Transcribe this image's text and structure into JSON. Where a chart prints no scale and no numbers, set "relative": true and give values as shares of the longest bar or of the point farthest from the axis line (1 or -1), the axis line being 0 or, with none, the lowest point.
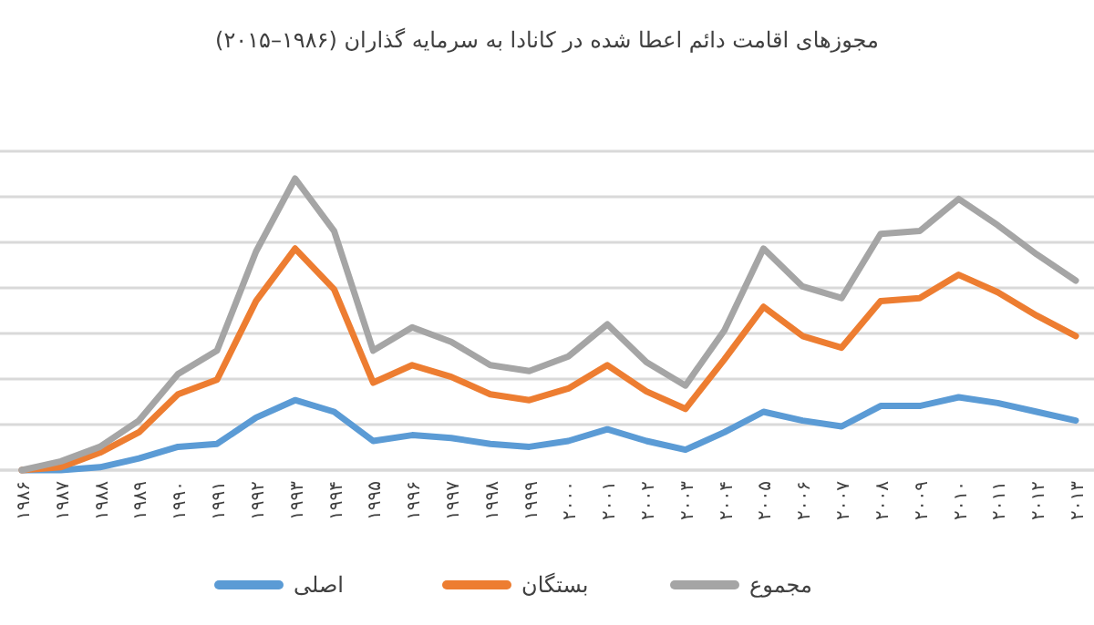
{
  "chart_data": {
    "type": "line",
    "title": "مجوزهای اقامت دائم اعطا شده در کانادا به سرمایه گذاران (۱۹۸۶–۲۰۱۵)",
    "relative": true,
    "grid": "y",
    "legend": "bottom",
    "marker": "none",
    "line_style": "solid",
    "categories": [
      "۱۹۸۶",
      "۱۹۸۷",
      "۱۹۸۸",
      "۱۹۸۹",
      "۱۹۹۰",
      "۱۹۹۱",
      "۱۹۹۲",
      "۱۹۹۳",
      "۱۹۹۴",
      "۱۹۹۵",
      "۱۹۹۶",
      "۱۹۹۷",
      "۱۹۹۸",
      "۱۹۹۹",
      "۲۰۰۰",
      "۲۰۰۱",
      "۲۰۰۲",
      "۲۰۰۳",
      "۲۰۰۴",
      "۲۰۰۵",
      "۲۰۰۶",
      "۲۰۰۷",
      "۲۰۰۸",
      "۲۰۰۹",
      "۲۰۱۰",
      "۲۰۱۱",
      "۲۰۱۲",
      "۲۰۱۳"
    ],
    "series": [
      {
        "name": "اصلی",
        "color": "#5b9bd5",
        "values": [
          0,
          0,
          0.01,
          0.04,
          0.08,
          0.09,
          0.18,
          0.24,
          0.2,
          0.1,
          0.12,
          0.11,
          0.09,
          0.08,
          0.1,
          0.14,
          0.1,
          0.07,
          0.13,
          0.2,
          0.17,
          0.15,
          0.22,
          0.22,
          0.25,
          0.23,
          0.2,
          0.17
        ]
      },
      {
        "name": "بستگان",
        "color": "#ed7d31",
        "values": [
          0,
          0.01,
          0.06,
          0.13,
          0.26,
          0.31,
          0.58,
          0.76,
          0.62,
          0.3,
          0.36,
          0.32,
          0.26,
          0.24,
          0.28,
          0.36,
          0.27,
          0.21,
          0.38,
          0.56,
          0.46,
          0.42,
          0.58,
          0.59,
          0.67,
          0.61,
          0.53,
          0.46
        ]
      },
      {
        "name": "مجموع",
        "color": "#a5a5a5",
        "values": [
          0,
          0.03,
          0.08,
          0.17,
          0.33,
          0.41,
          0.75,
          1,
          0.82,
          0.41,
          0.49,
          0.44,
          0.36,
          0.34,
          0.39,
          0.5,
          0.37,
          0.29,
          0.48,
          0.76,
          0.63,
          0.59,
          0.81,
          0.82,
          0.93,
          0.84,
          0.74,
          0.65
        ]
      }
    ]
  }
}
